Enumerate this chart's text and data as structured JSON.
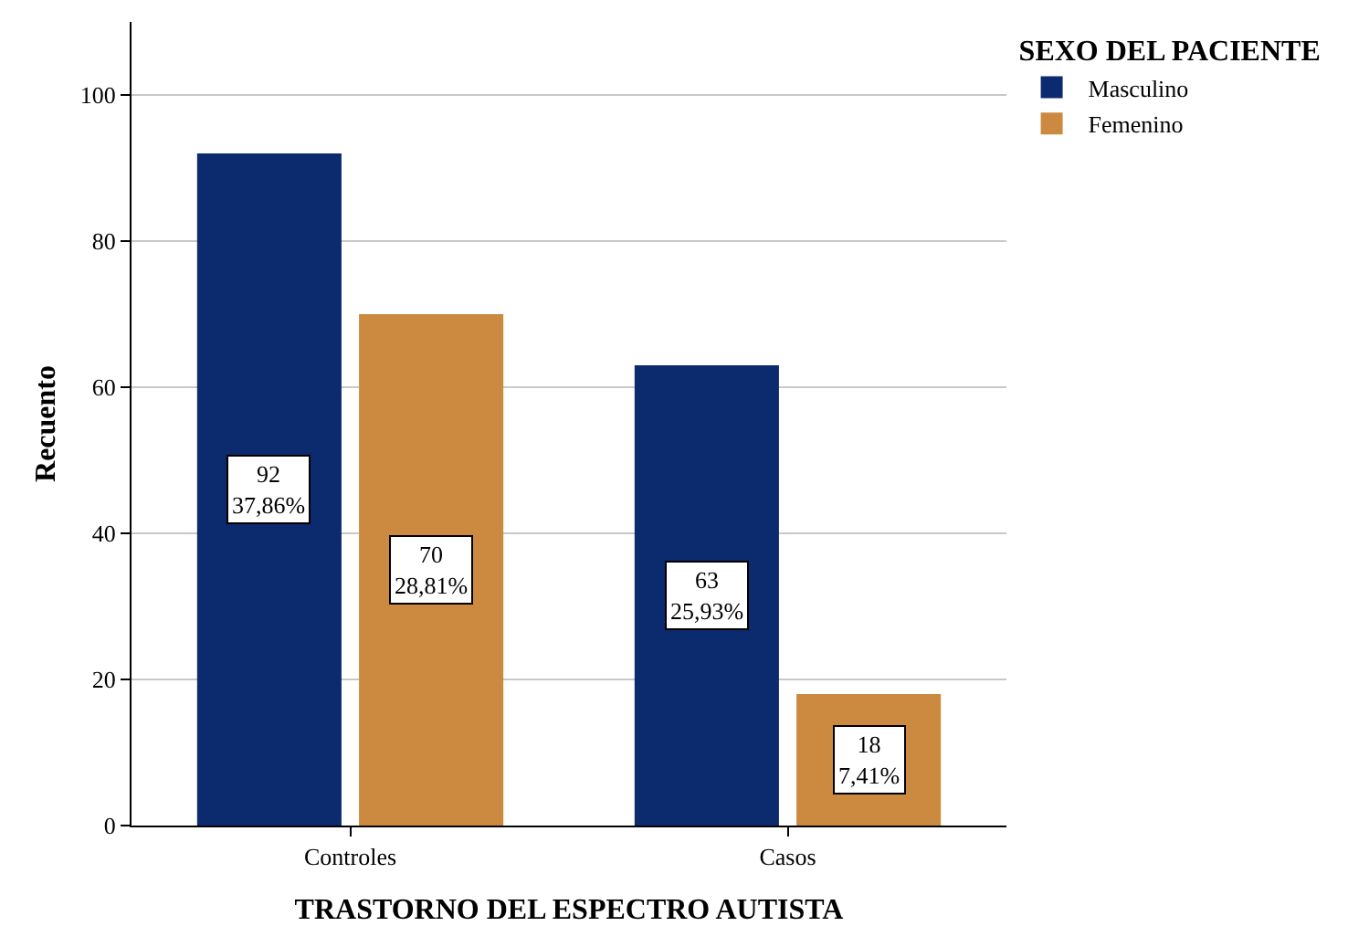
{
  "chart_data": {
    "type": "bar",
    "xlabel": "TRASTORNO DEL ESPECTRO AUTISTA",
    "ylabel": "Recuento",
    "legend_title": "SEXO DEL PACIENTE",
    "categories": [
      "Controles",
      "Casos"
    ],
    "series": [
      {
        "name": "Masculino",
        "color": "#0c2a6e",
        "values": [
          92,
          63
        ],
        "value_labels": [
          "92\n37,86%",
          "63\n25,93%"
        ]
      },
      {
        "name": "Femenino",
        "color": "#cc8a40",
        "values": [
          70,
          18
        ],
        "value_labels": [
          "70\n28,81%",
          "18\n7,41%"
        ]
      }
    ],
    "ylim": [
      0,
      110
    ],
    "yticks": [
      0,
      20,
      40,
      60,
      80,
      100
    ],
    "grid": "y",
    "legend": "top right"
  }
}
